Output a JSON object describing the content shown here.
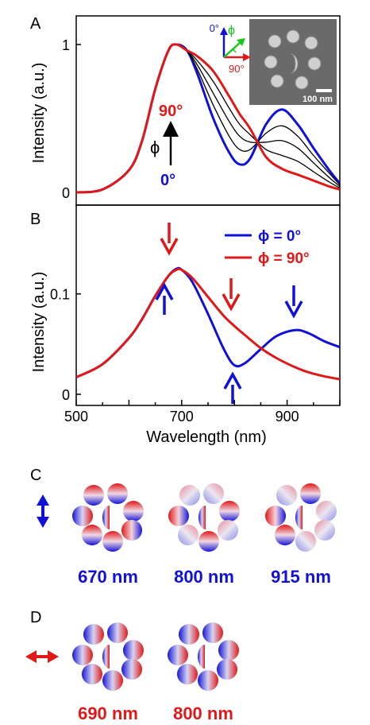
{
  "figure": {
    "panel_labels": [
      "A",
      "B",
      "C",
      "D"
    ],
    "colors": {
      "blue": "#1010d8",
      "red": "#e01818",
      "green": "#19c719",
      "black": "#000000"
    }
  },
  "panel_a": {
    "ylabel": "Intensity (a.u.)",
    "yticks": [
      "0",
      "1"
    ],
    "annotation_top": "90°",
    "annotation_bottom": "0°",
    "annotation_phi": "ϕ",
    "inset": {
      "axis_0": "0°",
      "axis_90": "90°",
      "axis_phi": "ϕ",
      "scale_bar": "100 nm"
    }
  },
  "panel_b": {
    "ylabel": "Intensity (a.u.)",
    "xlabel": "Wavelength (nm)",
    "yticks": [
      "0",
      "0.1"
    ],
    "xticks": [
      "500",
      "700",
      "900"
    ],
    "legend": [
      "ϕ = 0°",
      "ϕ = 90°"
    ]
  },
  "panel_c": {
    "labels": [
      "670 nm",
      "800 nm",
      "915 nm"
    ],
    "polarization": "vertical"
  },
  "panel_d": {
    "labels": [
      "690 nm",
      "800 nm"
    ],
    "polarization": "horizontal"
  },
  "chart_data": [
    {
      "type": "line",
      "title": "",
      "xlabel": "",
      "ylabel": "Intensity (a.u.)",
      "xlim": [
        500,
        1000
      ],
      "ylim": [
        0,
        1.08
      ],
      "x": [
        500,
        550,
        600,
        625,
        650,
        675,
        690,
        710,
        730,
        760,
        790,
        810,
        830,
        860,
        890,
        920,
        950,
        980,
        1000
      ],
      "series": [
        {
          "values": [
            0.0,
            0.02,
            0.15,
            0.35,
            0.7,
            0.96,
            1.0,
            0.96,
            0.8,
            0.5,
            0.27,
            0.19,
            0.23,
            0.46,
            0.56,
            0.46,
            0.3,
            0.15,
            0.06
          ]
        },
        {
          "values": [
            0.0,
            0.02,
            0.15,
            0.35,
            0.7,
            0.96,
            1.0,
            0.96,
            0.83,
            0.59,
            0.38,
            0.29,
            0.29,
            0.4,
            0.45,
            0.38,
            0.25,
            0.13,
            0.05
          ]
        },
        {
          "values": [
            0.0,
            0.02,
            0.15,
            0.35,
            0.7,
            0.96,
            1.0,
            0.96,
            0.86,
            0.67,
            0.48,
            0.38,
            0.34,
            0.34,
            0.35,
            0.3,
            0.2,
            0.1,
            0.04
          ]
        },
        {
          "values": [
            0.0,
            0.02,
            0.15,
            0.35,
            0.7,
            0.96,
            1.0,
            0.96,
            0.89,
            0.75,
            0.57,
            0.46,
            0.39,
            0.29,
            0.25,
            0.21,
            0.14,
            0.07,
            0.03
          ]
        },
        {
          "values": [
            0.0,
            0.02,
            0.15,
            0.35,
            0.7,
            0.96,
            1.0,
            0.96,
            0.92,
            0.82,
            0.65,
            0.53,
            0.43,
            0.24,
            0.16,
            0.12,
            0.08,
            0.04,
            0.02
          ]
        }
      ],
      "annotations": [
        "90°",
        "ϕ",
        "0°"
      ]
    },
    {
      "type": "line",
      "title": "",
      "xlabel": "Wavelength (nm)",
      "ylabel": "Intensity (a.u.)",
      "xlim": [
        500,
        1000
      ],
      "ylim": [
        0,
        0.17
      ],
      "xticks": [
        500,
        700,
        900
      ],
      "yticks": [
        0,
        0.1
      ],
      "x": [
        500,
        550,
        600,
        625,
        650,
        675,
        690,
        700,
        720,
        750,
        780,
        800,
        820,
        850,
        880,
        915,
        940,
        970,
        1000
      ],
      "series": [
        {
          "name": "ϕ = 0°",
          "values": [
            0.017,
            0.03,
            0.056,
            0.075,
            0.098,
            0.118,
            0.125,
            0.124,
            0.112,
            0.08,
            0.045,
            0.029,
            0.031,
            0.045,
            0.058,
            0.064,
            0.061,
            0.053,
            0.047
          ]
        },
        {
          "name": "ϕ = 90°",
          "values": [
            0.017,
            0.03,
            0.056,
            0.075,
            0.098,
            0.118,
            0.124,
            0.124,
            0.116,
            0.097,
            0.078,
            0.068,
            0.059,
            0.046,
            0.036,
            0.027,
            0.022,
            0.018,
            0.015
          ]
        }
      ],
      "legend_position": "top-right"
    }
  ]
}
